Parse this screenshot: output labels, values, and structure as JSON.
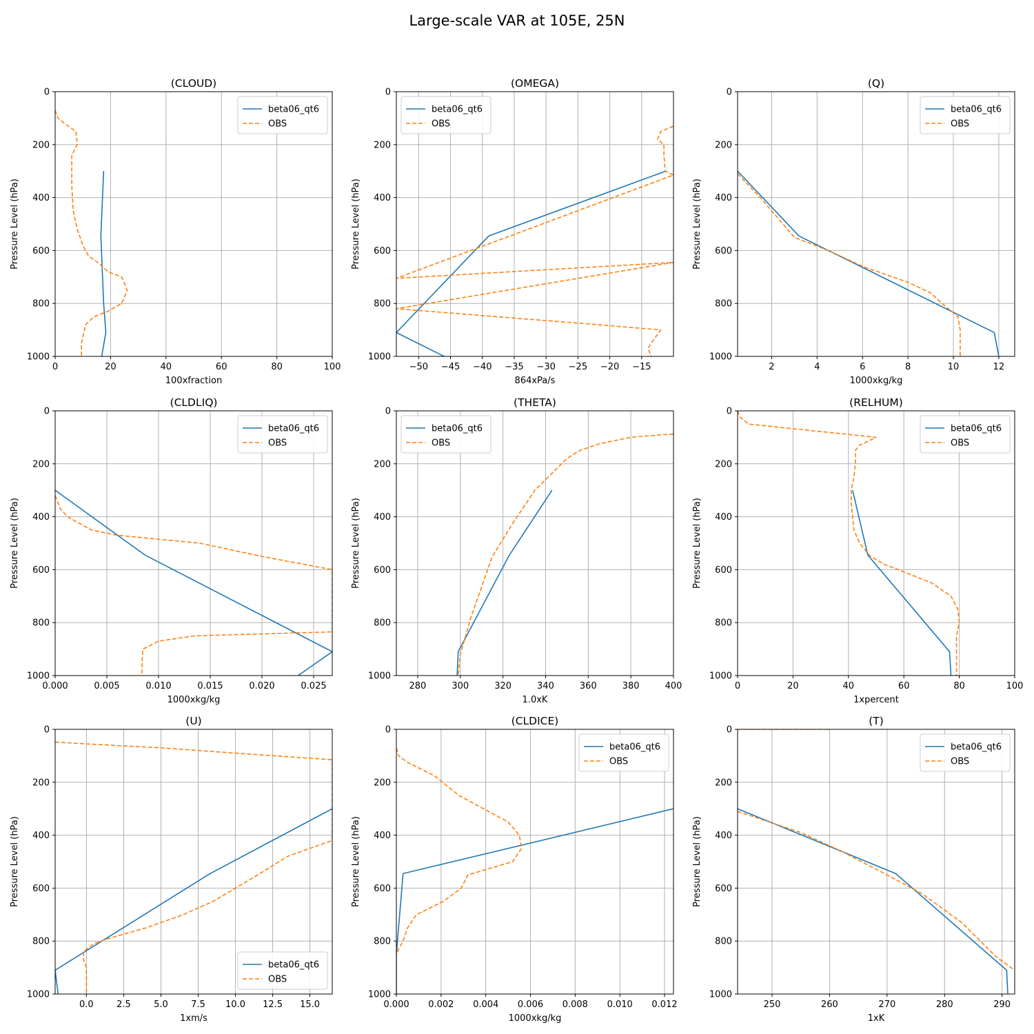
{
  "figure": {
    "title": "Large-scale VAR at 105E, 25N"
  },
  "colors": {
    "model": "#1f77b4",
    "obs": "#ff7f0e",
    "grid": "#b0b0b0",
    "frame": "#000000"
  },
  "chart_data": [
    {
      "type": "line",
      "title": "(CLOUD)",
      "xlabel": "100xfraction",
      "ylabel": "Pressure Level (hPa)",
      "xlim": [
        0,
        100
      ],
      "ylim": [
        1000,
        0
      ],
      "grid": true,
      "legend": "upper right",
      "xticks": [
        0,
        20,
        40,
        60,
        80,
        100
      ],
      "xtick_labels": [
        "0",
        "20",
        "40",
        "60",
        "80",
        "100"
      ],
      "yticks": [
        0,
        200,
        400,
        600,
        800,
        1000
      ],
      "ytick_labels": [
        "0",
        "200",
        "400",
        "600",
        "800",
        "1000"
      ],
      "series": [
        {
          "name": "beta06_qt6",
          "style": "solid",
          "x": [
            17.5,
            16.5,
            17.5,
            18.3,
            16.8
          ],
          "y": [
            300,
            545,
            800,
            910,
            1000
          ]
        },
        {
          "name": "OBS",
          "style": "dashed",
          "x": [
            0,
            1,
            4,
            7.5,
            8,
            6,
            6,
            6,
            6.5,
            8,
            10,
            12,
            16,
            19,
            24,
            26,
            24,
            19,
            14,
            11,
            9.5,
            9.5
          ],
          "y": [
            70,
            100,
            125,
            150,
            200,
            240,
            300,
            350,
            450,
            520,
            580,
            620,
            650,
            680,
            700,
            750,
            800,
            830,
            850,
            880,
            950,
            1000
          ]
        }
      ]
    },
    {
      "type": "line",
      "title": "(OMEGA)",
      "xlabel": "864xPa/s",
      "ylabel": "Pressure Level (hPa)",
      "xlim": [
        -53.5,
        -10
      ],
      "ylim": [
        1000,
        0
      ],
      "grid": true,
      "legend": "upper left",
      "xticks": [
        -50,
        -45,
        -40,
        -35,
        -30,
        -25,
        -20,
        -15
      ],
      "xtick_labels": [
        "−50",
        "−45",
        "−40",
        "−35",
        "−30",
        "−25",
        "−20",
        "−15"
      ],
      "yticks": [
        0,
        200,
        400,
        600,
        800,
        1000
      ],
      "ytick_labels": [
        "0",
        "200",
        "400",
        "600",
        "800",
        "1000"
      ],
      "series": [
        {
          "name": "beta06_qt6",
          "style": "solid",
          "x": [
            -11.2,
            -39,
            -53.5,
            -46
          ],
          "y": [
            300,
            545,
            910,
            1000
          ]
        },
        {
          "name": "OBS",
          "style": "dashed",
          "x": [
            -10,
            -12,
            -12.5,
            -11.5,
            -11.5,
            -11.3,
            -10,
            -53.5,
            -10,
            -53.5,
            -22,
            -12,
            -13.5,
            -14,
            -13.5
          ],
          "y": [
            130,
            150,
            180,
            200,
            240,
            300,
            315,
            705,
            645,
            820,
            880,
            900,
            950,
            970,
            1000
          ]
        }
      ]
    },
    {
      "type": "line",
      "title": "(Q)",
      "xlabel": "1000xkg/kg",
      "ylabel": "Pressure Level (hPa)",
      "xlim": [
        0.5,
        12.7
      ],
      "ylim": [
        1000,
        0
      ],
      "grid": true,
      "legend": "upper right",
      "xticks": [
        2,
        4,
        6,
        8,
        10,
        12
      ],
      "xtick_labels": [
        "2",
        "4",
        "6",
        "8",
        "10",
        "12"
      ],
      "yticks": [
        0,
        200,
        400,
        600,
        800,
        1000
      ],
      "ytick_labels": [
        "0",
        "200",
        "400",
        "600",
        "800",
        "1000"
      ],
      "series": [
        {
          "name": "beta06_qt6",
          "style": "solid",
          "x": [
            0.5,
            3.2,
            11.8,
            12
          ],
          "y": [
            300,
            545,
            910,
            1000
          ]
        },
        {
          "name": "OBS",
          "style": "dashed",
          "x": [
            0.5,
            1.5,
            2.2,
            3,
            4.5,
            6,
            8,
            9,
            9.5,
            10.2,
            10.3,
            10.3
          ],
          "y": [
            310,
            400,
            470,
            550,
            600,
            660,
            720,
            760,
            800,
            850,
            900,
            1000
          ]
        }
      ]
    },
    {
      "type": "line",
      "title": "(CLDLIQ)",
      "xlabel": "1000xkg/kg",
      "ylabel": "Pressure Level (hPa)",
      "xlim": [
        0,
        0.0268
      ],
      "ylim": [
        1000,
        0
      ],
      "grid": true,
      "legend": "upper right",
      "xticks": [
        0,
        0.005,
        0.01,
        0.015,
        0.02,
        0.025
      ],
      "xtick_labels": [
        "0.000",
        "0.005",
        "0.010",
        "0.015",
        "0.020",
        "0.025"
      ],
      "yticks": [
        0,
        200,
        400,
        600,
        800,
        1000
      ],
      "ytick_labels": [
        "0",
        "200",
        "400",
        "600",
        "800",
        "1000"
      ],
      "series": [
        {
          "name": "beta06_qt6",
          "style": "solid",
          "x": [
            0,
            0.0087,
            0.0268,
            0.0235
          ],
          "y": [
            300,
            545,
            910,
            1000
          ]
        },
        {
          "name": "OBS",
          "style": "dashed",
          "x": [
            0,
            0.0005,
            0.0012,
            0.0035,
            0.006,
            0.014,
            0.02,
            0.0268,
            0.0268,
            0.0135,
            0.01,
            0.0085,
            0.0084,
            0.0084
          ],
          "y": [
            320,
            370,
            400,
            450,
            470,
            500,
            550,
            600,
            835,
            850,
            870,
            900,
            950,
            1000
          ]
        }
      ]
    },
    {
      "type": "line",
      "title": "(THETA)",
      "xlabel": "1.0xK",
      "ylabel": "Pressure Level (hPa)",
      "xlim": [
        270,
        400
      ],
      "ylim": [
        1000,
        0
      ],
      "grid": true,
      "legend": "upper left",
      "xticks": [
        280,
        300,
        320,
        340,
        360,
        380,
        400
      ],
      "xtick_labels": [
        "280",
        "300",
        "320",
        "340",
        "360",
        "380",
        "400"
      ],
      "yticks": [
        0,
        200,
        400,
        600,
        800,
        1000
      ],
      "ytick_labels": [
        "0",
        "200",
        "400",
        "600",
        "800",
        "1000"
      ],
      "series": [
        {
          "name": "beta06_qt6",
          "style": "solid",
          "x": [
            343,
            323,
            299,
            298.5
          ],
          "y": [
            300,
            545,
            910,
            1000
          ]
        },
        {
          "name": "OBS",
          "style": "dashed",
          "x": [
            400,
            395,
            380,
            365,
            356,
            350,
            345,
            335,
            325,
            315,
            305,
            300,
            299
          ],
          "y": [
            88,
            90,
            100,
            125,
            150,
            180,
            220,
            300,
            420,
            550,
            780,
            920,
            1000
          ]
        }
      ]
    },
    {
      "type": "line",
      "title": "(RELHUM)",
      "xlabel": "1xpercent",
      "ylabel": "Pressure Level (hPa)",
      "xlim": [
        0,
        100
      ],
      "ylim": [
        1000,
        0
      ],
      "grid": true,
      "legend": "upper right",
      "xticks": [
        0,
        20,
        40,
        60,
        80,
        100
      ],
      "xtick_labels": [
        "0",
        "20",
        "40",
        "60",
        "80",
        "100"
      ],
      "yticks": [
        0,
        200,
        400,
        600,
        800,
        1000
      ],
      "ytick_labels": [
        "0",
        "200",
        "400",
        "600",
        "800",
        "1000"
      ],
      "series": [
        {
          "name": "beta06_qt6",
          "style": "solid",
          "x": [
            41.5,
            47,
            76.5,
            77
          ],
          "y": [
            300,
            545,
            910,
            1000
          ]
        },
        {
          "name": "OBS",
          "style": "dashed",
          "x": [
            0,
            1,
            4,
            50,
            44,
            42.5,
            42.5,
            42,
            41,
            41,
            42,
            44,
            48,
            53,
            58,
            70,
            77,
            79.5,
            80,
            79,
            79,
            79
          ],
          "y": [
            0,
            25,
            50,
            100,
            130,
            150,
            200,
            250,
            300,
            350,
            450,
            500,
            550,
            580,
            600,
            650,
            700,
            750,
            800,
            850,
            900,
            1000
          ]
        }
      ]
    },
    {
      "type": "line",
      "title": "(U)",
      "xlabel": "1xm/s",
      "ylabel": "Pressure Level (hPa)",
      "xlim": [
        -2.1,
        16.5
      ],
      "ylim": [
        1000,
        0
      ],
      "grid": true,
      "legend": "lower right",
      "xticks": [
        0,
        2.5,
        5,
        7.5,
        10,
        12.5,
        15
      ],
      "xtick_labels": [
        "0.0",
        "2.5",
        "5.0",
        "7.5",
        "10.0",
        "12.5",
        "15.0"
      ],
      "yticks": [
        0,
        200,
        400,
        600,
        800,
        1000
      ],
      "ytick_labels": [
        "0",
        "200",
        "400",
        "600",
        "800",
        "1000"
      ],
      "series": [
        {
          "name": "beta06_qt6",
          "style": "solid",
          "x": [
            16.5,
            8.3,
            -2.1,
            -1.9
          ],
          "y": [
            300,
            545,
            910,
            1000
          ]
        },
        {
          "name": "OBS",
          "style": "dashed",
          "x": [
            -2.1,
            0,
            5,
            10,
            16.5,
            16.5,
            13.5,
            11.5,
            10,
            8.5,
            6.5,
            4,
            1.5,
            0.5,
            -0.2,
            -0.2,
            0,
            0,
            0
          ],
          "y": [
            48,
            55,
            70,
            90,
            115,
            420,
            480,
            550,
            600,
            650,
            700,
            750,
            790,
            810,
            840,
            870,
            900,
            950,
            1000
          ]
        }
      ]
    },
    {
      "type": "line",
      "title": "(CLDICE)",
      "xlabel": "1000xkg/kg",
      "ylabel": "Pressure Level (hPa)",
      "xlim": [
        0,
        0.0124
      ],
      "ylim": [
        1000,
        0
      ],
      "grid": true,
      "legend": "upper right",
      "xticks": [
        0,
        0.002,
        0.004,
        0.006,
        0.008,
        0.01,
        0.012
      ],
      "xtick_labels": [
        "0.000",
        "0.002",
        "0.004",
        "0.006",
        "0.008",
        "0.010",
        "0.012"
      ],
      "yticks": [
        0,
        200,
        400,
        600,
        800,
        1000
      ],
      "ytick_labels": [
        "0",
        "200",
        "400",
        "600",
        "800",
        "1000"
      ],
      "series": [
        {
          "name": "beta06_qt6",
          "style": "solid",
          "x": [
            0.0124,
            0.0003,
            0,
            0
          ],
          "y": [
            300,
            545,
            850,
            1000
          ]
        },
        {
          "name": "OBS",
          "style": "dashed",
          "x": [
            0,
            0.0001,
            0.0005,
            0.0017,
            0.0028,
            0.0039,
            0.005,
            0.0055,
            0.0056,
            0.0052,
            0.0032,
            0.0029,
            0.0021,
            0.0009,
            0.0005,
            0.0003,
            0.0001,
            0
          ],
          "y": [
            70,
            100,
            125,
            175,
            250,
            300,
            350,
            400,
            450,
            500,
            550,
            600,
            650,
            700,
            750,
            800,
            830,
            850
          ]
        }
      ]
    },
    {
      "type": "line",
      "title": "(T)",
      "xlabel": "1xK",
      "ylabel": "Pressure Level (hPa)",
      "xlim": [
        244,
        292.2
      ],
      "ylim": [
        1000,
        0
      ],
      "grid": true,
      "legend": "upper right",
      "xticks": [
        250,
        260,
        270,
        280,
        290
      ],
      "xtick_labels": [
        "250",
        "260",
        "270",
        "280",
        "290"
      ],
      "yticks": [
        0,
        200,
        400,
        600,
        800,
        1000
      ],
      "ytick_labels": [
        "0",
        "200",
        "400",
        "600",
        "800",
        "1000"
      ],
      "series": [
        {
          "name": "beta06_qt6",
          "style": "solid",
          "x": [
            244,
            271.5,
            290.8,
            291
          ],
          "y": [
            300,
            545,
            910,
            1000
          ]
        },
        {
          "name": "OBS",
          "style": "dashed",
          "x": [
            244,
            255,
            262,
            270,
            276,
            283,
            289,
            292.2
          ],
          "y": [
            310,
            390,
            460,
            550,
            620,
            730,
            860,
            910
          ]
        },
        {
          "name": "",
          "style": "dashed",
          "x": [
            244,
            260
          ],
          "y": [
            0,
            0
          ]
        }
      ]
    }
  ]
}
